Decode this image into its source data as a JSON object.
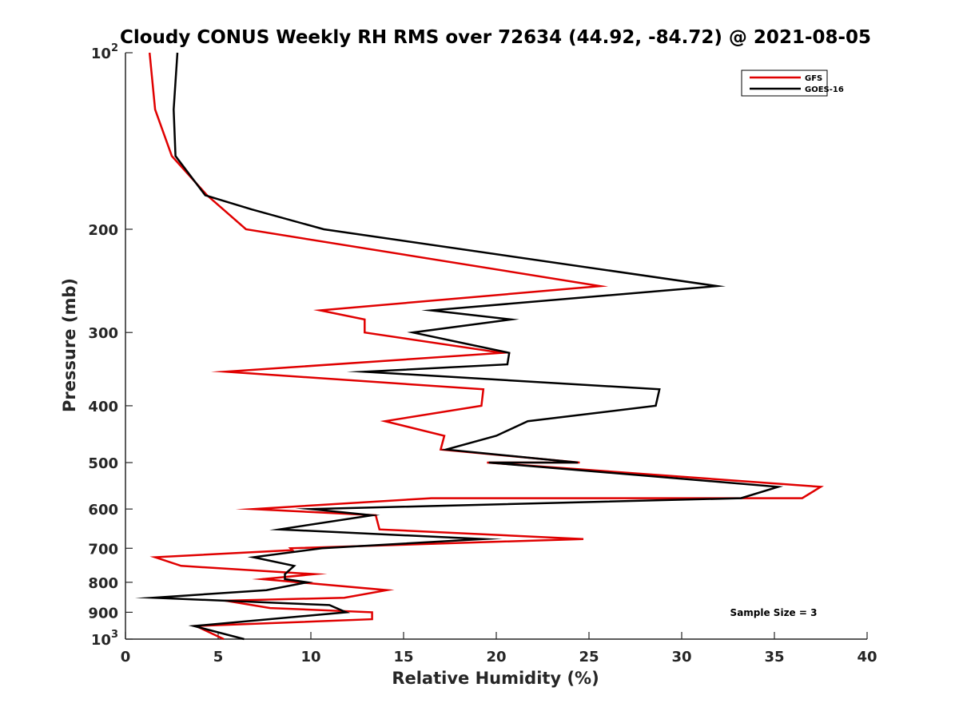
{
  "chart_data": {
    "type": "line",
    "title": "Cloudy CONUS Weekly RH RMS over 72634 (44.92, -84.72) @ 2021-08-05",
    "xlabel": "Relative Humidity (%)",
    "ylabel": "Pressure (mb)",
    "xlim": [
      0,
      40
    ],
    "ylim": [
      100,
      1000
    ],
    "y_scale": "log",
    "y_reversed": true,
    "grid": false,
    "legend_position": "top-right",
    "x_ticks": [
      "0",
      "5",
      "10",
      "15",
      "20",
      "25",
      "30",
      "35",
      "40"
    ],
    "y_ticks": [
      {
        "value": 100,
        "base": "10",
        "exp": "2"
      },
      {
        "value": 200,
        "label": "200"
      },
      {
        "value": 300,
        "label": "300"
      },
      {
        "value": 400,
        "label": "400"
      },
      {
        "value": 500,
        "label": "500"
      },
      {
        "value": 600,
        "label": "600"
      },
      {
        "value": 700,
        "label": "700"
      },
      {
        "value": 800,
        "label": "800"
      },
      {
        "value": 900,
        "label": "900"
      },
      {
        "value": 1000,
        "base": "10",
        "exp": "3"
      }
    ],
    "annotation": "Sample Size = 3",
    "series": [
      {
        "name": "GFS",
        "color": "#e00000",
        "points": [
          [
            1.3,
            100
          ],
          [
            1.6,
            125
          ],
          [
            2.5,
            150
          ],
          [
            4.4,
            175
          ],
          [
            6.5,
            200
          ],
          [
            25.6,
            250
          ],
          [
            10.5,
            275
          ],
          [
            12.9,
            285
          ],
          [
            12.9,
            300
          ],
          [
            20.3,
            325
          ],
          [
            5.4,
            350
          ],
          [
            19.3,
            375
          ],
          [
            19.2,
            400
          ],
          [
            14.0,
            425
          ],
          [
            17.2,
            450
          ],
          [
            17.0,
            475
          ],
          [
            24.5,
            500
          ],
          [
            19.5,
            500
          ],
          [
            37.5,
            550
          ],
          [
            36.5,
            575
          ],
          [
            16.5,
            575
          ],
          [
            6.9,
            600
          ],
          [
            13.5,
            615
          ],
          [
            13.7,
            650
          ],
          [
            24.7,
            675
          ],
          [
            8.9,
            700
          ],
          [
            9.0,
            705
          ],
          [
            1.6,
            725
          ],
          [
            3.0,
            750
          ],
          [
            10.2,
            775
          ],
          [
            7.4,
            790
          ],
          [
            14.1,
            825
          ],
          [
            11.8,
            850
          ],
          [
            5.4,
            860
          ],
          [
            7.8,
            885
          ],
          [
            13.3,
            900
          ],
          [
            13.3,
            925
          ],
          [
            3.8,
            950
          ],
          [
            5.3,
            1000
          ]
        ]
      },
      {
        "name": "GOES-16",
        "color": "#000000",
        "points": [
          [
            2.8,
            100
          ],
          [
            2.6,
            125
          ],
          [
            2.7,
            150
          ],
          [
            4.3,
            175
          ],
          [
            6.8,
            185
          ],
          [
            10.7,
            200
          ],
          [
            31.9,
            250
          ],
          [
            16.5,
            275
          ],
          [
            20.8,
            285
          ],
          [
            15.5,
            300
          ],
          [
            20.7,
            325
          ],
          [
            20.6,
            340
          ],
          [
            12.9,
            350
          ],
          [
            28.8,
            375
          ],
          [
            28.6,
            400
          ],
          [
            21.7,
            425
          ],
          [
            20.0,
            450
          ],
          [
            17.3,
            475
          ],
          [
            24.4,
            500
          ],
          [
            19.6,
            500
          ],
          [
            35.2,
            550
          ],
          [
            33.2,
            575
          ],
          [
            10.0,
            600
          ],
          [
            13.3,
            615
          ],
          [
            8.3,
            650
          ],
          [
            19.3,
            675
          ],
          [
            10.6,
            700
          ],
          [
            6.9,
            725
          ],
          [
            9.1,
            750
          ],
          [
            8.6,
            775
          ],
          [
            8.6,
            790
          ],
          [
            9.8,
            800
          ],
          [
            7.6,
            825
          ],
          [
            1.5,
            850
          ],
          [
            11.0,
            875
          ],
          [
            11.9,
            900
          ],
          [
            3.7,
            950
          ],
          [
            6.4,
            1000
          ]
        ]
      }
    ]
  }
}
